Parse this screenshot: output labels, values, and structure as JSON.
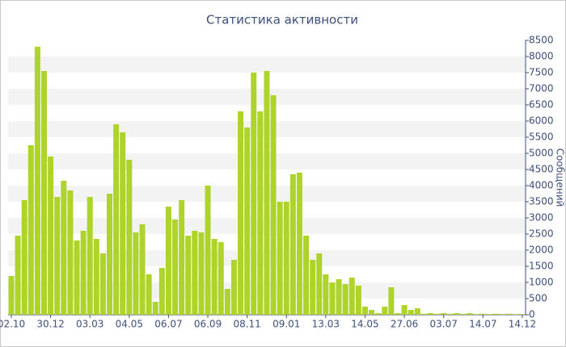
{
  "chart_data": {
    "type": "bar",
    "title": "Статистика активности",
    "y_label": "Сообщений",
    "categories": [
      "02.10",
      null,
      null,
      null,
      null,
      null,
      "30.12",
      null,
      null,
      null,
      null,
      null,
      "03.03",
      null,
      null,
      null,
      null,
      null,
      "04.05",
      null,
      null,
      null,
      null,
      null,
      "06.07",
      null,
      null,
      null,
      null,
      null,
      "06.09",
      null,
      null,
      null,
      null,
      null,
      "08.11",
      null,
      null,
      null,
      null,
      null,
      "09.01",
      null,
      null,
      null,
      null,
      null,
      "13.03",
      null,
      null,
      null,
      null,
      null,
      "14.05",
      null,
      null,
      null,
      null,
      null,
      "27.06",
      null,
      null,
      null,
      null,
      null,
      "03.07",
      null,
      null,
      null,
      null,
      null,
      "14.07",
      null,
      null,
      null,
      null,
      null,
      "14.12"
    ],
    "values": [
      1200,
      2450,
      3550,
      5250,
      8300,
      7550,
      4900,
      3650,
      4150,
      3850,
      2300,
      2600,
      3650,
      2350,
      1900,
      3750,
      5900,
      5650,
      4800,
      2550,
      2800,
      1250,
      400,
      1450,
      3350,
      2950,
      3550,
      2450,
      2600,
      2550,
      4000,
      2350,
      2250,
      800,
      1700,
      6300,
      5800,
      7500,
      6300,
      7550,
      6800,
      3500,
      3500,
      4350,
      4400,
      2450,
      1700,
      1900,
      1250,
      1000,
      1100,
      950,
      1150,
      900,
      250,
      150,
      50,
      250,
      850,
      50,
      300,
      150,
      200,
      30,
      50,
      30,
      50,
      30,
      50,
      30,
      50,
      20,
      30,
      20,
      30,
      20,
      30,
      20,
      20
    ],
    "color": "#aed42b",
    "ylim": [
      0,
      8500
    ],
    "yticks": [
      0,
      500,
      1000,
      1500,
      2000,
      2500,
      3000,
      3500,
      4000,
      4500,
      5000,
      5500,
      6000,
      6500,
      7000,
      7500,
      8000,
      8500
    ],
    "grid": true
  }
}
